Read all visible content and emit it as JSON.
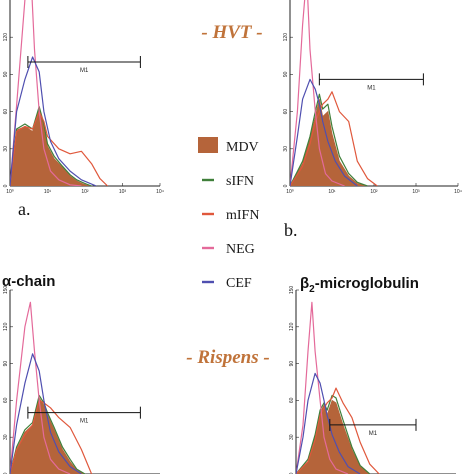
{
  "labels": {
    "virus_top": "- HVT -",
    "virus_bottom": "- Rispens -",
    "panel_a": "a.",
    "panel_b": "b.",
    "title_c": "α-chain",
    "title_d_prefix": "β",
    "title_d_sub": "2",
    "title_d_suffix": "-microglobulin",
    "marker": "M1"
  },
  "colors": {
    "MDV": "#b5643a",
    "sIFN": "#3f7f3a",
    "mIFN": "#e0583c",
    "NEG": "#e46a9a",
    "CEF": "#4f4fb0"
  },
  "legend": [
    {
      "name": "MDV",
      "style": "fill"
    },
    {
      "name": "sIFN",
      "style": "line"
    },
    {
      "name": "mIFN",
      "style": "line"
    },
    {
      "name": "NEG",
      "style": "line"
    },
    {
      "name": "CEF",
      "style": "line"
    }
  ],
  "chart_data": [
    {
      "type": "area",
      "panel": "a",
      "x_scale": "log",
      "xlim": [
        1,
        10000
      ],
      "ylim": [
        0,
        150
      ],
      "x_tick_labels": [
        "10⁰",
        "10¹",
        "10²",
        "10³",
        "10⁴"
      ],
      "y_tick_labels": [
        "0",
        "30",
        "60",
        "90",
        "120"
      ],
      "marker": {
        "label": "M1",
        "x_range": [
          3,
          3000
        ],
        "y": 100
      },
      "series": [
        {
          "name": "MDV",
          "x": [
            1,
            1.5,
            2.5,
            4,
            6,
            8,
            10,
            15,
            25,
            40,
            60,
            100,
            150
          ],
          "y": [
            0,
            45,
            48,
            44,
            62,
            48,
            32,
            22,
            15,
            8,
            4,
            1,
            0
          ]
        },
        {
          "name": "sIFN",
          "x": [
            1,
            1.5,
            2.5,
            4,
            6,
            8,
            10,
            15,
            25,
            40,
            60,
            100,
            150
          ],
          "y": [
            0,
            46,
            50,
            46,
            64,
            50,
            34,
            24,
            16,
            9,
            5,
            2,
            0
          ]
        },
        {
          "name": "mIFN",
          "x": [
            1,
            1.5,
            2.5,
            4,
            6,
            8,
            10,
            20,
            40,
            80,
            150,
            250,
            400
          ],
          "y": [
            0,
            44,
            48,
            46,
            60,
            52,
            40,
            30,
            26,
            28,
            18,
            6,
            0
          ]
        },
        {
          "name": "NEG",
          "x": [
            1,
            1.5,
            2.5,
            3.5,
            4.5,
            6,
            8,
            12,
            20,
            40,
            80
          ],
          "y": [
            0,
            65,
            150,
            180,
            110,
            60,
            30,
            12,
            5,
            1,
            0
          ]
        },
        {
          "name": "CEF",
          "x": [
            1,
            1.5,
            2.5,
            4,
            6,
            8,
            12,
            20,
            40,
            80,
            200
          ],
          "y": [
            0,
            60,
            86,
            104,
            92,
            60,
            36,
            22,
            12,
            5,
            0
          ]
        }
      ]
    },
    {
      "type": "area",
      "panel": "b",
      "x_scale": "log",
      "xlim": [
        1,
        10000
      ],
      "ylim": [
        0,
        150
      ],
      "x_tick_labels": [
        "10⁰",
        "10¹",
        "10²",
        "10³",
        "10⁴"
      ],
      "y_tick_labels": [
        "0",
        "30",
        "60",
        "90",
        "120"
      ],
      "marker": {
        "label": "M1",
        "x_range": [
          5,
          1500
        ],
        "y": 86
      },
      "series": [
        {
          "name": "MDV",
          "x": [
            1,
            2,
            3,
            4,
            5,
            6,
            8,
            10,
            15,
            25,
            40,
            70
          ],
          "y": [
            0,
            18,
            38,
            56,
            70,
            56,
            60,
            42,
            20,
            8,
            2,
            0
          ]
        },
        {
          "name": "sIFN",
          "x": [
            1,
            2,
            3,
            4,
            5,
            6,
            8,
            10,
            15,
            25,
            40,
            70
          ],
          "y": [
            0,
            20,
            40,
            60,
            74,
            62,
            66,
            48,
            24,
            10,
            3,
            0
          ]
        },
        {
          "name": "mIFN",
          "x": [
            1,
            2,
            3,
            4,
            6,
            8,
            10,
            15,
            25,
            40,
            70,
            120
          ],
          "y": [
            0,
            16,
            34,
            52,
            66,
            70,
            76,
            60,
            52,
            20,
            6,
            0
          ]
        },
        {
          "name": "NEG",
          "x": [
            1,
            1.5,
            2,
            2.5,
            3,
            4,
            5,
            7,
            10,
            20
          ],
          "y": [
            0,
            60,
            130,
            170,
            110,
            60,
            30,
            10,
            4,
            0
          ]
        },
        {
          "name": "CEF",
          "x": [
            1,
            1.5,
            2,
            3,
            4,
            5,
            6,
            8,
            12,
            20,
            40
          ],
          "y": [
            0,
            40,
            70,
            86,
            78,
            66,
            52,
            36,
            20,
            8,
            0
          ]
        }
      ]
    },
    {
      "type": "area",
      "panel": "c",
      "title": "α-chain",
      "x_scale": "log",
      "xlim": [
        1,
        10000
      ],
      "ylim": [
        0,
        150
      ],
      "y_tick_labels": [
        "0",
        "30",
        "60",
        "90",
        "120",
        "150"
      ],
      "marker": {
        "label": "M1",
        "x_range": [
          3,
          3000
        ],
        "y": 50
      },
      "series": [
        {
          "name": "MDV",
          "x": [
            1,
            1.5,
            2.5,
            4,
            6,
            8,
            10,
            15,
            25,
            40,
            60,
            100
          ],
          "y": [
            0,
            20,
            34,
            40,
            62,
            56,
            48,
            36,
            20,
            10,
            3,
            0
          ]
        },
        {
          "name": "sIFN",
          "x": [
            1,
            1.5,
            2.5,
            4,
            6,
            8,
            10,
            15,
            25,
            40,
            60,
            100
          ],
          "y": [
            0,
            22,
            36,
            42,
            64,
            58,
            50,
            38,
            22,
            12,
            4,
            0
          ]
        },
        {
          "name": "mIFN",
          "x": [
            1,
            1.5,
            2.5,
            4,
            6,
            8,
            12,
            20,
            40,
            80,
            150
          ],
          "y": [
            0,
            20,
            32,
            40,
            60,
            58,
            54,
            46,
            38,
            20,
            0
          ]
        },
        {
          "name": "NEG",
          "x": [
            1,
            1.5,
            2.5,
            3.5,
            4.5,
            6,
            8,
            12,
            20,
            40
          ],
          "y": [
            0,
            60,
            120,
            140,
            100,
            60,
            30,
            12,
            4,
            0
          ]
        },
        {
          "name": "CEF",
          "x": [
            1,
            1.5,
            2.5,
            4,
            6,
            8,
            12,
            20,
            40,
            80
          ],
          "y": [
            0,
            40,
            74,
            98,
            84,
            60,
            34,
            18,
            6,
            0
          ]
        }
      ]
    },
    {
      "type": "area",
      "panel": "d",
      "title": "β2-microglobulin",
      "x_scale": "log",
      "xlim": [
        1,
        10000
      ],
      "ylim": [
        0,
        150
      ],
      "y_tick_labels": [
        "0",
        "30",
        "60",
        "90",
        "120",
        "150"
      ],
      "marker": {
        "label": "M1",
        "x_range": [
          7,
          1000
        ],
        "y": 40
      },
      "series": [
        {
          "name": "MDV",
          "x": [
            1,
            2,
            3,
            4,
            5,
            6,
            8,
            10,
            15,
            25,
            40,
            70
          ],
          "y": [
            0,
            10,
            30,
            50,
            56,
            48,
            60,
            58,
            40,
            20,
            6,
            0
          ]
        },
        {
          "name": "sIFN",
          "x": [
            1,
            2,
            3,
            4,
            5,
            6,
            8,
            10,
            15,
            25,
            40,
            70
          ],
          "y": [
            0,
            12,
            32,
            52,
            58,
            52,
            64,
            62,
            44,
            22,
            7,
            0
          ]
        },
        {
          "name": "mIFN",
          "x": [
            1,
            2,
            3,
            4,
            6,
            8,
            10,
            15,
            25,
            40,
            70,
            120
          ],
          "y": [
            0,
            10,
            28,
            48,
            58,
            62,
            70,
            58,
            46,
            26,
            8,
            0
          ]
        },
        {
          "name": "NEG",
          "x": [
            1,
            1.5,
            2,
            2.5,
            3,
            4,
            5,
            7,
            10,
            20
          ],
          "y": [
            0,
            40,
            100,
            140,
            100,
            60,
            30,
            12,
            4,
            0
          ]
        },
        {
          "name": "CEF",
          "x": [
            1,
            1.5,
            2,
            3,
            4,
            5,
            6,
            8,
            12,
            20,
            40
          ],
          "y": [
            0,
            30,
            60,
            82,
            74,
            60,
            48,
            32,
            18,
            6,
            0
          ]
        }
      ]
    }
  ]
}
